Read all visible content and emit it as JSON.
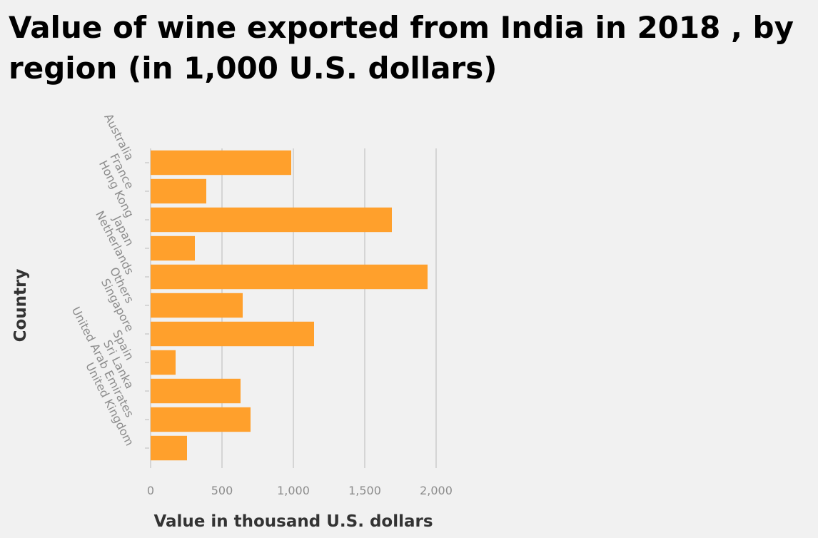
{
  "title": "Value of wine exported from India in 2018 , by region (in 1,000 U.S. dollars)",
  "chart_data": {
    "type": "bar",
    "orientation": "horizontal",
    "title": "Value of wine exported from India in 2018 , by region (in 1,000 U.S. dollars)",
    "xlabel": "Value in thousand U.S. dollars",
    "ylabel": "Country",
    "categories": [
      "Australia",
      "France",
      "Hong Kong",
      "Japan",
      "Netherlands",
      "Others",
      "Singapore",
      "Spain",
      "Sri Lanka",
      "United Arab Emirates",
      "United Kingdom"
    ],
    "values": [
      985,
      390,
      1690,
      310,
      1940,
      645,
      1145,
      175,
      630,
      700,
      255
    ],
    "xlim": [
      0,
      2000
    ],
    "xticks": [
      0,
      500,
      1000,
      1500,
      2000
    ],
    "xtick_labels": [
      "0",
      "500",
      "1,000",
      "1,500",
      "2,000"
    ],
    "grid": "vertical",
    "legend": "none",
    "bar_color": "#ffa02c",
    "grid_color": "#cccccc",
    "tick_label_color": "#8c8c8c"
  }
}
